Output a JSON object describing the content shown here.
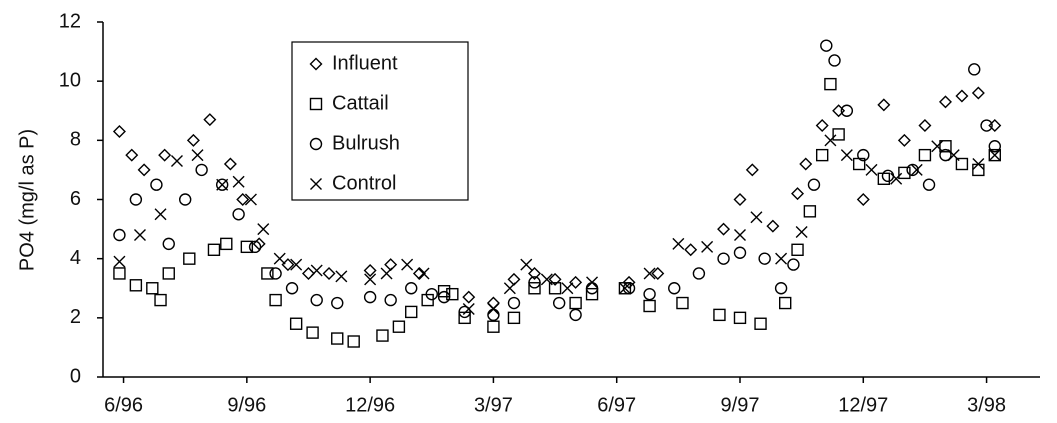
{
  "chart_data": {
    "type": "scatter",
    "y_label": "PO4 (mg/l as P)",
    "xlim": [
      -0.5,
      22.3
    ],
    "xticks": [
      {
        "value": 0,
        "label": "6/96"
      },
      {
        "value": 3,
        "label": "9/96"
      },
      {
        "value": 6,
        "label": "12/96"
      },
      {
        "value": 9,
        "label": "3/97"
      },
      {
        "value": 12,
        "label": "6/97"
      },
      {
        "value": 15,
        "label": "9/97"
      },
      {
        "value": 18,
        "label": "12/97"
      },
      {
        "value": 21,
        "label": "3/98"
      }
    ],
    "ylim": [
      0,
      12
    ],
    "yticks": [
      0,
      2,
      4,
      6,
      8,
      10,
      12
    ],
    "series": [
      {
        "name": "Influent",
        "marker": "diamond",
        "color": "#000000",
        "x": [
          -0.1,
          0.2,
          0.5,
          1,
          1.7,
          2.1,
          2.6,
          2.9,
          3.3,
          4,
          4.5,
          5,
          6,
          6.5,
          7.2,
          8.4,
          9,
          9.5,
          10,
          10.5,
          11,
          12.3,
          13,
          13.8,
          14.6,
          15,
          15.3,
          15.8,
          16.4,
          16.6,
          17,
          17.4,
          18,
          18.5,
          19,
          19.5,
          20,
          20.4,
          20.8,
          21.2
        ],
        "values": [
          8.3,
          7.5,
          7,
          7.5,
          8,
          8.7,
          7.2,
          6,
          4.5,
          3.8,
          3.5,
          3.5,
          3.6,
          3.8,
          3.5,
          2.7,
          2.5,
          3.3,
          3.5,
          3.3,
          3.2,
          3.2,
          3.5,
          4.3,
          5,
          6,
          7,
          5.1,
          6.2,
          7.2,
          8.5,
          9,
          6,
          9.2,
          8,
          8.5,
          9.3,
          9.5,
          9.6,
          8.5
        ]
      },
      {
        "name": "Cattail",
        "marker": "square",
        "color": "#000000",
        "x": [
          -0.1,
          0.3,
          0.7,
          0.9,
          1.1,
          1.6,
          2.2,
          2.5,
          3,
          3.5,
          3.7,
          4.2,
          4.6,
          5.2,
          5.6,
          6.3,
          6.7,
          7,
          7.4,
          7.8,
          8,
          8.3,
          9,
          9.5,
          10,
          10.5,
          11,
          11.4,
          12.2,
          12.8,
          13.6,
          14.5,
          15,
          15.5,
          16.1,
          16.4,
          16.7,
          17,
          17.2,
          17.4,
          17.9,
          18.5,
          19,
          19.5,
          20,
          20.4,
          20.8,
          21.2
        ],
        "values": [
          3.5,
          3.1,
          3,
          2.6,
          3.5,
          4,
          4.3,
          4.5,
          4.4,
          3.5,
          2.6,
          1.8,
          1.5,
          1.3,
          1.2,
          1.4,
          1.7,
          2.2,
          2.6,
          2.9,
          2.8,
          2,
          1.7,
          2,
          3,
          3,
          2.5,
          2.8,
          3,
          2.4,
          2.5,
          2.1,
          2,
          1.8,
          2.5,
          4.3,
          5.6,
          7.5,
          9.9,
          8.2,
          7.2,
          6.7,
          6.9,
          7.5,
          7.8,
          7.2,
          7,
          7.5
        ]
      },
      {
        "name": "Bulrush",
        "marker": "circle",
        "color": "#000000",
        "x": [
          -0.1,
          0.3,
          0.8,
          1.1,
          1.5,
          1.9,
          2.4,
          2.8,
          3.2,
          3.7,
          4.1,
          4.7,
          5.2,
          6,
          6.5,
          7,
          7.5,
          7.8,
          8.3,
          9,
          9.5,
          10,
          10.6,
          11,
          11.4,
          12.3,
          12.8,
          13.4,
          14,
          14.6,
          15,
          15.6,
          16,
          16.3,
          16.8,
          17.1,
          17.3,
          17.6,
          18,
          18.6,
          19.2,
          19.6,
          20,
          20.7,
          21,
          21.2
        ],
        "values": [
          4.8,
          6,
          6.5,
          4.5,
          6,
          7,
          6.5,
          5.5,
          4.4,
          3.5,
          3,
          2.6,
          2.5,
          2.7,
          2.6,
          3,
          2.8,
          2.7,
          2.2,
          2.1,
          2.5,
          3.2,
          2.5,
          2.1,
          3,
          3,
          2.8,
          3,
          3.5,
          4,
          4.2,
          4,
          3,
          3.8,
          6.5,
          11.2,
          10.7,
          9,
          7.5,
          6.8,
          7,
          6.5,
          7.5,
          10.4,
          8.5,
          7.8
        ]
      },
      {
        "name": "Control",
        "marker": "x",
        "color": "#000000",
        "x": [
          -0.1,
          0.4,
          0.9,
          1.3,
          1.8,
          2.4,
          2.8,
          3.1,
          3.4,
          3.8,
          4.2,
          4.7,
          5.3,
          6,
          6.4,
          6.9,
          7.3,
          8.4,
          9,
          9.4,
          9.8,
          10.3,
          10.8,
          11.4,
          12.2,
          12.8,
          13.5,
          14.2,
          15,
          15.4,
          16,
          16.5,
          17.2,
          17.6,
          18.2,
          18.8,
          19.3,
          19.8,
          20.2,
          20.8,
          21.2
        ],
        "values": [
          3.9,
          4.8,
          5.5,
          7.3,
          7.5,
          6.5,
          6.6,
          6,
          5,
          4,
          3.8,
          3.6,
          3.4,
          3.3,
          3.5,
          3.8,
          3.5,
          2.3,
          2.3,
          3,
          3.8,
          3.3,
          3,
          3.2,
          3,
          3.5,
          4.5,
          4.4,
          4.8,
          5.4,
          4,
          4.9,
          8,
          7.5,
          7,
          6.7,
          7,
          7.8,
          7.5,
          7.2,
          7.5
        ]
      }
    ]
  }
}
